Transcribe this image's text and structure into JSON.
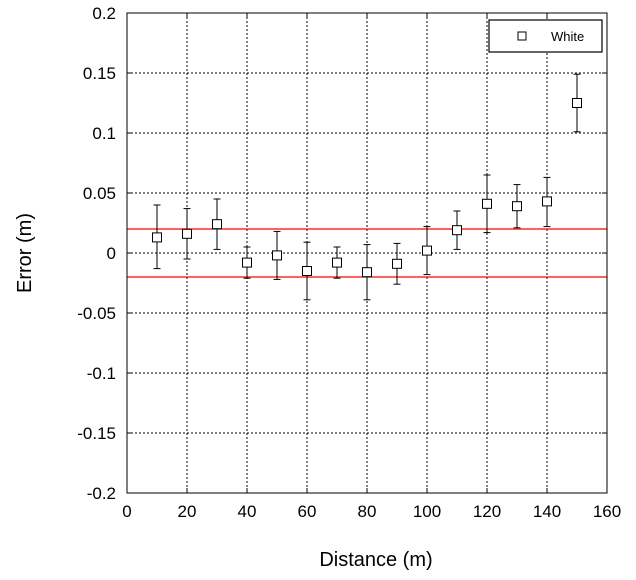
{
  "chart_data": {
    "type": "scatter",
    "title": "",
    "xlabel": "Distance (m)",
    "ylabel": "Error (m)",
    "xlim": [
      0,
      160
    ],
    "ylim": [
      -0.2,
      0.2
    ],
    "x_ticks": [
      0,
      20,
      40,
      60,
      80,
      100,
      120,
      140,
      160
    ],
    "y_ticks": [
      -0.2,
      -0.15,
      -0.1,
      -0.05,
      0,
      0.05,
      0.1,
      0.15,
      0.2
    ],
    "x_tick_labels": [
      "0",
      "20",
      "40",
      "60",
      "80",
      "100",
      "120",
      "140",
      "160"
    ],
    "y_tick_labels": [
      "-0.2",
      "-0.15",
      "-0.1",
      "-0.05",
      "0",
      "0.05",
      "0.1",
      "0.15",
      "0.2"
    ],
    "grid": true,
    "legend_position": "top-right",
    "series": [
      {
        "name": "White",
        "marker": "open-square",
        "points": [
          {
            "x": 10,
            "y": 0.013,
            "y_low": -0.013,
            "y_high": 0.04
          },
          {
            "x": 20,
            "y": 0.016,
            "y_low": -0.005,
            "y_high": 0.037
          },
          {
            "x": 30,
            "y": 0.024,
            "y_low": 0.003,
            "y_high": 0.045
          },
          {
            "x": 40,
            "y": -0.008,
            "y_low": -0.021,
            "y_high": 0.005
          },
          {
            "x": 50,
            "y": -0.002,
            "y_low": -0.022,
            "y_high": 0.018
          },
          {
            "x": 60,
            "y": -0.015,
            "y_low": -0.039,
            "y_high": 0.009
          },
          {
            "x": 70,
            "y": -0.008,
            "y_low": -0.021,
            "y_high": 0.005
          },
          {
            "x": 80,
            "y": -0.016,
            "y_low": -0.039,
            "y_high": 0.007
          },
          {
            "x": 90,
            "y": -0.009,
            "y_low": -0.026,
            "y_high": 0.008
          },
          {
            "x": 100,
            "y": 0.002,
            "y_low": -0.018,
            "y_high": 0.022
          },
          {
            "x": 110,
            "y": 0.019,
            "y_low": 0.003,
            "y_high": 0.035
          },
          {
            "x": 120,
            "y": 0.041,
            "y_low": 0.017,
            "y_high": 0.065
          },
          {
            "x": 130,
            "y": 0.039,
            "y_low": 0.021,
            "y_high": 0.057
          },
          {
            "x": 140,
            "y": 0.043,
            "y_low": 0.022,
            "y_high": 0.063
          },
          {
            "x": 150,
            "y": 0.125,
            "y_low": 0.101,
            "y_high": 0.149
          }
        ]
      }
    ],
    "reference_lines": [
      {
        "y": 0.02,
        "color": "#ff0000"
      },
      {
        "y": -0.02,
        "color": "#ff0000"
      }
    ]
  }
}
